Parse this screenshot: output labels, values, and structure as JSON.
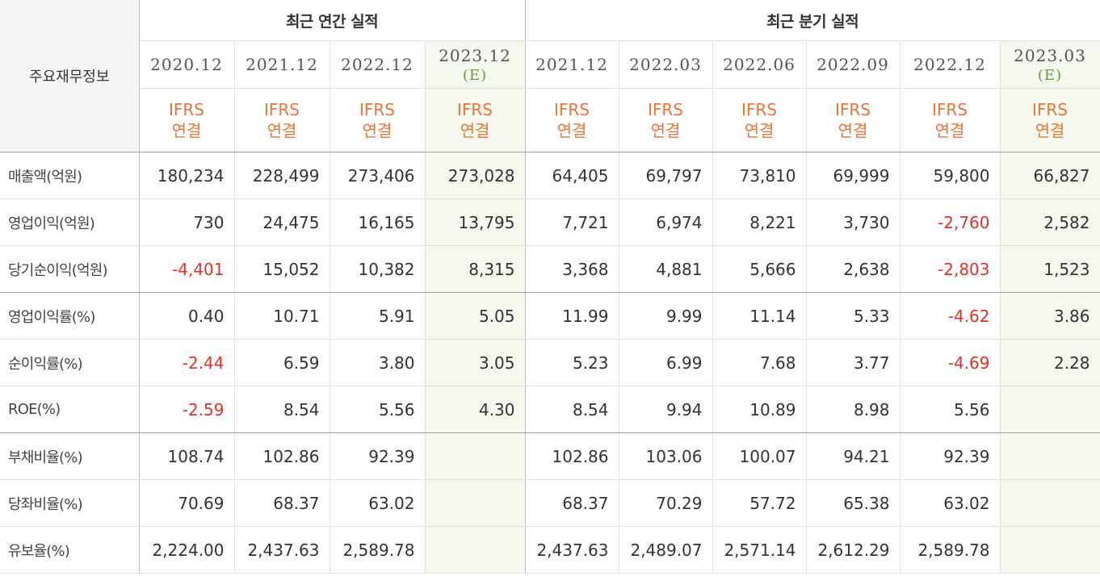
{
  "table": {
    "corner_label": "주요재무정보",
    "annual_title": "최근 연간 실적",
    "quarterly_title": "최근 분기 실적",
    "estimate_mark": "(E)",
    "ifrs_line1": "IFRS",
    "ifrs_line2": "연결",
    "periods": [
      {
        "label": "2020.12",
        "est": false
      },
      {
        "label": "2021.12",
        "est": false
      },
      {
        "label": "2022.12",
        "est": false
      },
      {
        "label": "2023.12",
        "est": true
      },
      {
        "label": "2021.12",
        "est": false
      },
      {
        "label": "2022.03",
        "est": false
      },
      {
        "label": "2022.06",
        "est": false
      },
      {
        "label": "2022.09",
        "est": false
      },
      {
        "label": "2022.12",
        "est": false
      },
      {
        "label": "2023.03",
        "est": true
      }
    ],
    "rows": [
      {
        "label": "매출액(억원)",
        "values": [
          "180,234",
          "228,499",
          "273,406",
          "273,028",
          "64,405",
          "69,797",
          "73,810",
          "69,999",
          "59,800",
          "66,827"
        ]
      },
      {
        "label": "영업이익(억원)",
        "values": [
          "730",
          "24,475",
          "16,165",
          "13,795",
          "7,721",
          "6,974",
          "8,221",
          "3,730",
          "-2,760",
          "2,582"
        ]
      },
      {
        "label": "당기순이익(억원)",
        "values": [
          "-4,401",
          "15,052",
          "10,382",
          "8,315",
          "3,368",
          "4,881",
          "5,666",
          "2,638",
          "-2,803",
          "1,523"
        ]
      },
      {
        "label": "영업이익률(%)",
        "values": [
          "0.40",
          "10.71",
          "5.91",
          "5.05",
          "11.99",
          "9.99",
          "11.14",
          "5.33",
          "-4.62",
          "3.86"
        ]
      },
      {
        "label": "순이익률(%)",
        "values": [
          "-2.44",
          "6.59",
          "3.80",
          "3.05",
          "5.23",
          "6.99",
          "7.68",
          "3.77",
          "-4.69",
          "2.28"
        ]
      },
      {
        "label": "ROE(%)",
        "values": [
          "-2.59",
          "8.54",
          "5.56",
          "4.30",
          "8.54",
          "9.94",
          "10.89",
          "8.98",
          "5.56",
          ""
        ]
      },
      {
        "label": "부채비율(%)",
        "values": [
          "108.74",
          "102.86",
          "92.39",
          "",
          "102.86",
          "103.06",
          "100.07",
          "94.21",
          "92.39",
          ""
        ]
      },
      {
        "label": "당좌비율(%)",
        "values": [
          "70.69",
          "68.37",
          "63.02",
          "",
          "68.37",
          "70.29",
          "57.72",
          "65.38",
          "63.02",
          ""
        ]
      },
      {
        "label": "유보율(%)",
        "values": [
          "2,224.00",
          "2,437.63",
          "2,589.78",
          "",
          "2,437.63",
          "2,489.07",
          "2,571.14",
          "2,612.29",
          "2,589.78",
          ""
        ]
      }
    ],
    "colors": {
      "negative": "#e0322a",
      "ifrs": "#e8753a",
      "estimate_bg": "#f4f8ef",
      "estimate_text": "#6a9a3a"
    }
  }
}
